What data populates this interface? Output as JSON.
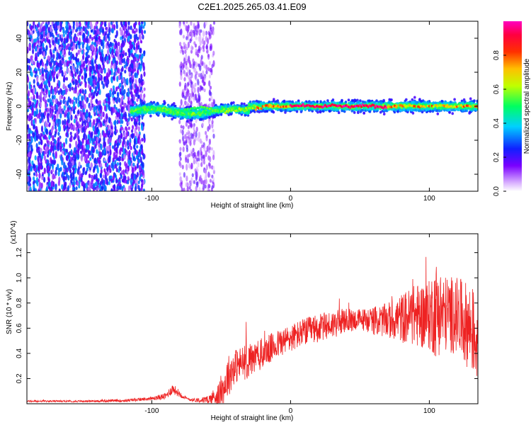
{
  "title": "C2E1.2025.265.03.41.E09",
  "colors": {
    "snr_line": "#ee2222",
    "colormap": [
      "#ffffff",
      "#c060ff",
      "#7a00ff",
      "#0040ff",
      "#00d0ff",
      "#00ff40",
      "#c0ff00",
      "#ffd000",
      "#ff4000",
      "#ff0000",
      "#ff00a0"
    ]
  },
  "chart_data": [
    {
      "type": "heatmap",
      "title": "C2E1.2025.265.03.41.E09",
      "xlabel": "Height of straight line (km)",
      "ylabel": "Frequency (Hz)",
      "xlim": [
        -190,
        135
      ],
      "ylim": [
        -50,
        50
      ],
      "xticks": [
        -100,
        0,
        100
      ],
      "yticks": [
        -40,
        -20,
        0,
        20,
        40
      ],
      "xtick_labels": [
        "-100",
        "0",
        "100"
      ],
      "ytick_labels": [
        "-40",
        "-20",
        "0",
        "20",
        "40"
      ],
      "colorbar": {
        "label": "Normalized spectral amplitude",
        "range": [
          0.0,
          1.0
        ],
        "ticks": [
          0.0,
          0.2,
          0.4,
          0.6,
          0.8
        ],
        "tick_labels": [
          "0.0",
          "0.2",
          "0.4",
          "0.6",
          "0.8"
        ]
      },
      "regions": [
        {
          "description": "scattered noise",
          "x_range": [
            -190,
            -105
          ],
          "freq_spread": 50,
          "amplitude": 0.35
        },
        {
          "description": "scattered noise",
          "x_range": [
            -80,
            -55
          ],
          "freq_spread": 50,
          "amplitude": 0.2
        },
        {
          "description": "signal band",
          "x_range": [
            -115,
            135
          ],
          "center_freq": 0,
          "amplitude_peak": 1.0
        }
      ]
    },
    {
      "type": "line",
      "xlabel": "Height of straight line (km)",
      "ylabel": "SNR (10 * v/v)",
      "y_multiplier": "(x10^4)",
      "xlim": [
        -190,
        135
      ],
      "ylim": [
        0,
        1.35
      ],
      "xticks": [
        -100,
        0,
        100
      ],
      "xtick_labels": [
        "-100",
        "0",
        "100"
      ],
      "yticks": [
        0.2,
        0.4,
        0.6,
        0.8,
        1.0,
        1.2
      ],
      "ytick_labels": [
        "0.2",
        "0.4",
        "0.6",
        "0.8",
        "1.0",
        "1.2"
      ],
      "series": [
        {
          "name": "SNR",
          "x": [
            -190,
            -150,
            -120,
            -100,
            -90,
            -85,
            -80,
            -75,
            -70,
            -60,
            -50,
            -45,
            -40,
            -30,
            -20,
            -10,
            0,
            10,
            20,
            30,
            40,
            50,
            60,
            70,
            80,
            90,
            100,
            105,
            110,
            120,
            130,
            135
          ],
          "y": [
            0.02,
            0.02,
            0.025,
            0.04,
            0.06,
            0.12,
            0.08,
            0.04,
            0.03,
            0.03,
            0.08,
            0.22,
            0.3,
            0.34,
            0.4,
            0.47,
            0.52,
            0.57,
            0.6,
            0.63,
            0.66,
            0.67,
            0.66,
            0.66,
            0.68,
            0.7,
            0.7,
            0.75,
            0.72,
            0.7,
            0.6,
            0.5
          ],
          "noise": [
            0.005,
            0.005,
            0.008,
            0.01,
            0.02,
            0.03,
            0.02,
            0.01,
            0.01,
            0.02,
            0.08,
            0.12,
            0.1,
            0.1,
            0.09,
            0.08,
            0.08,
            0.08,
            0.08,
            0.08,
            0.07,
            0.06,
            0.08,
            0.1,
            0.14,
            0.18,
            0.2,
            0.28,
            0.22,
            0.22,
            0.25,
            0.25
          ]
        }
      ]
    }
  ]
}
